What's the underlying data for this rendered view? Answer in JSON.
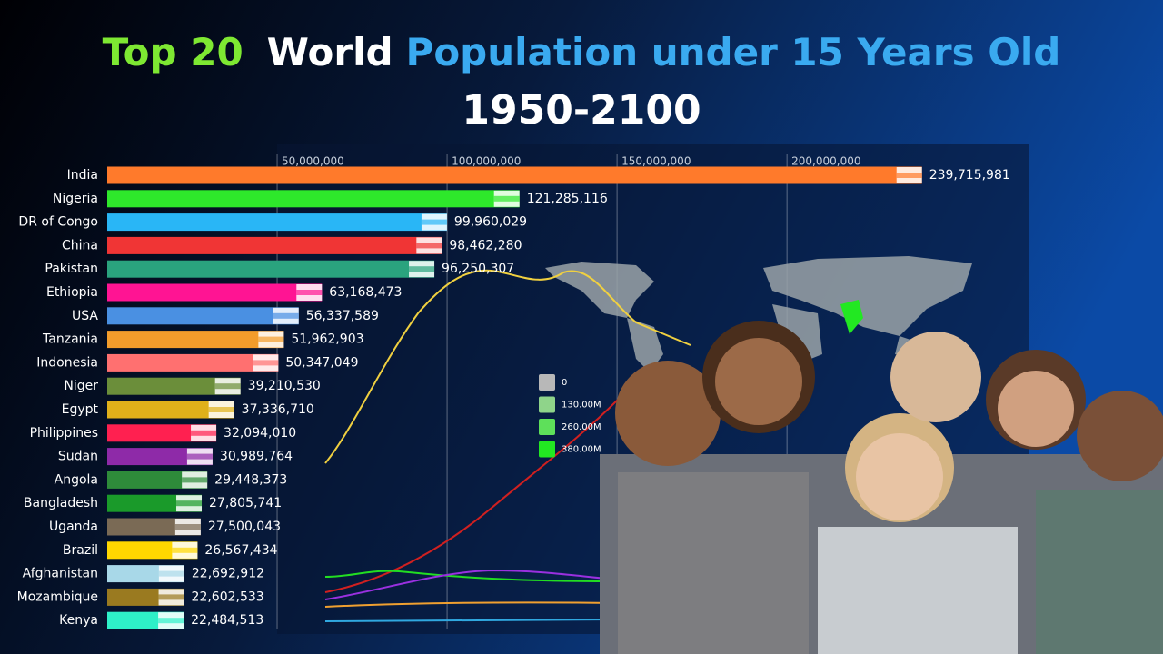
{
  "chart_data": {
    "type": "bar",
    "title_parts": [
      {
        "text": "Top 20",
        "color": "#7ee832"
      },
      {
        "text": "World",
        "color": "#ffffff"
      },
      {
        "text": "Population under 15 Years Old",
        "color": "#3aaaf0"
      }
    ],
    "subtitle": "1950-2100",
    "categories": [
      "India",
      "Nigeria",
      "DR of Congo",
      "China",
      "Pakistan",
      "Ethiopia",
      "USA",
      "Tanzania",
      "Indonesia",
      "Niger",
      "Egypt",
      "Philippines",
      "Sudan",
      "Angola",
      "Bangladesh",
      "Uganda",
      "Brazil",
      "Afghanistan",
      "Mozambique",
      "Kenya"
    ],
    "values": [
      239715981,
      121285116,
      99960029,
      98462280,
      96250307,
      63168473,
      56337589,
      51962903,
      50347049,
      39210530,
      37336710,
      32094010,
      30989764,
      29448373,
      27805741,
      27500043,
      26567434,
      22692912,
      22602533,
      22484513
    ],
    "value_labels": [
      "239,715,981",
      "121,285,116",
      "99,960,029",
      "98,462,280",
      "96,250,307",
      "63,168,473",
      "56,337,589",
      "51,962,903",
      "50,347,049",
      "39,210,530",
      "37,336,710",
      "32,094,010",
      "30,989,764",
      "29,448,373",
      "27,805,741",
      "27,500,043",
      "26,567,434",
      "22,692,912",
      "22,602,533",
      "22,484,513"
    ],
    "colors": [
      "#ff7a2b",
      "#2ee82b",
      "#29b6f6",
      "#f03535",
      "#2aa37e",
      "#ff1493",
      "#4a90e2",
      "#f39c2b",
      "#ff7070",
      "#6b8e3a",
      "#e0b01a",
      "#ff2050",
      "#8e2aa8",
      "#2e8b3a",
      "#1a9a2a",
      "#7a6a55",
      "#ffd700",
      "#a8d8e8",
      "#9a7a20",
      "#2ef0c8"
    ],
    "xlim": [
      0,
      270000000
    ],
    "xticks": [
      {
        "value": 50000000,
        "label": "50,000,000"
      },
      {
        "value": 100000000,
        "label": "100,000,000"
      },
      {
        "value": 150000000,
        "label": "150,000,000"
      },
      {
        "value": 200000000,
        "label": "200,000,000"
      }
    ],
    "grid": true,
    "map_legend": [
      {
        "label": "0",
        "color": "#b8b8b8"
      },
      {
        "label": "130.00M",
        "color": "#8fd48a"
      },
      {
        "label": "260.00M",
        "color": "#5ee05a"
      },
      {
        "label": "380.00M",
        "color": "#22e822"
      }
    ]
  }
}
